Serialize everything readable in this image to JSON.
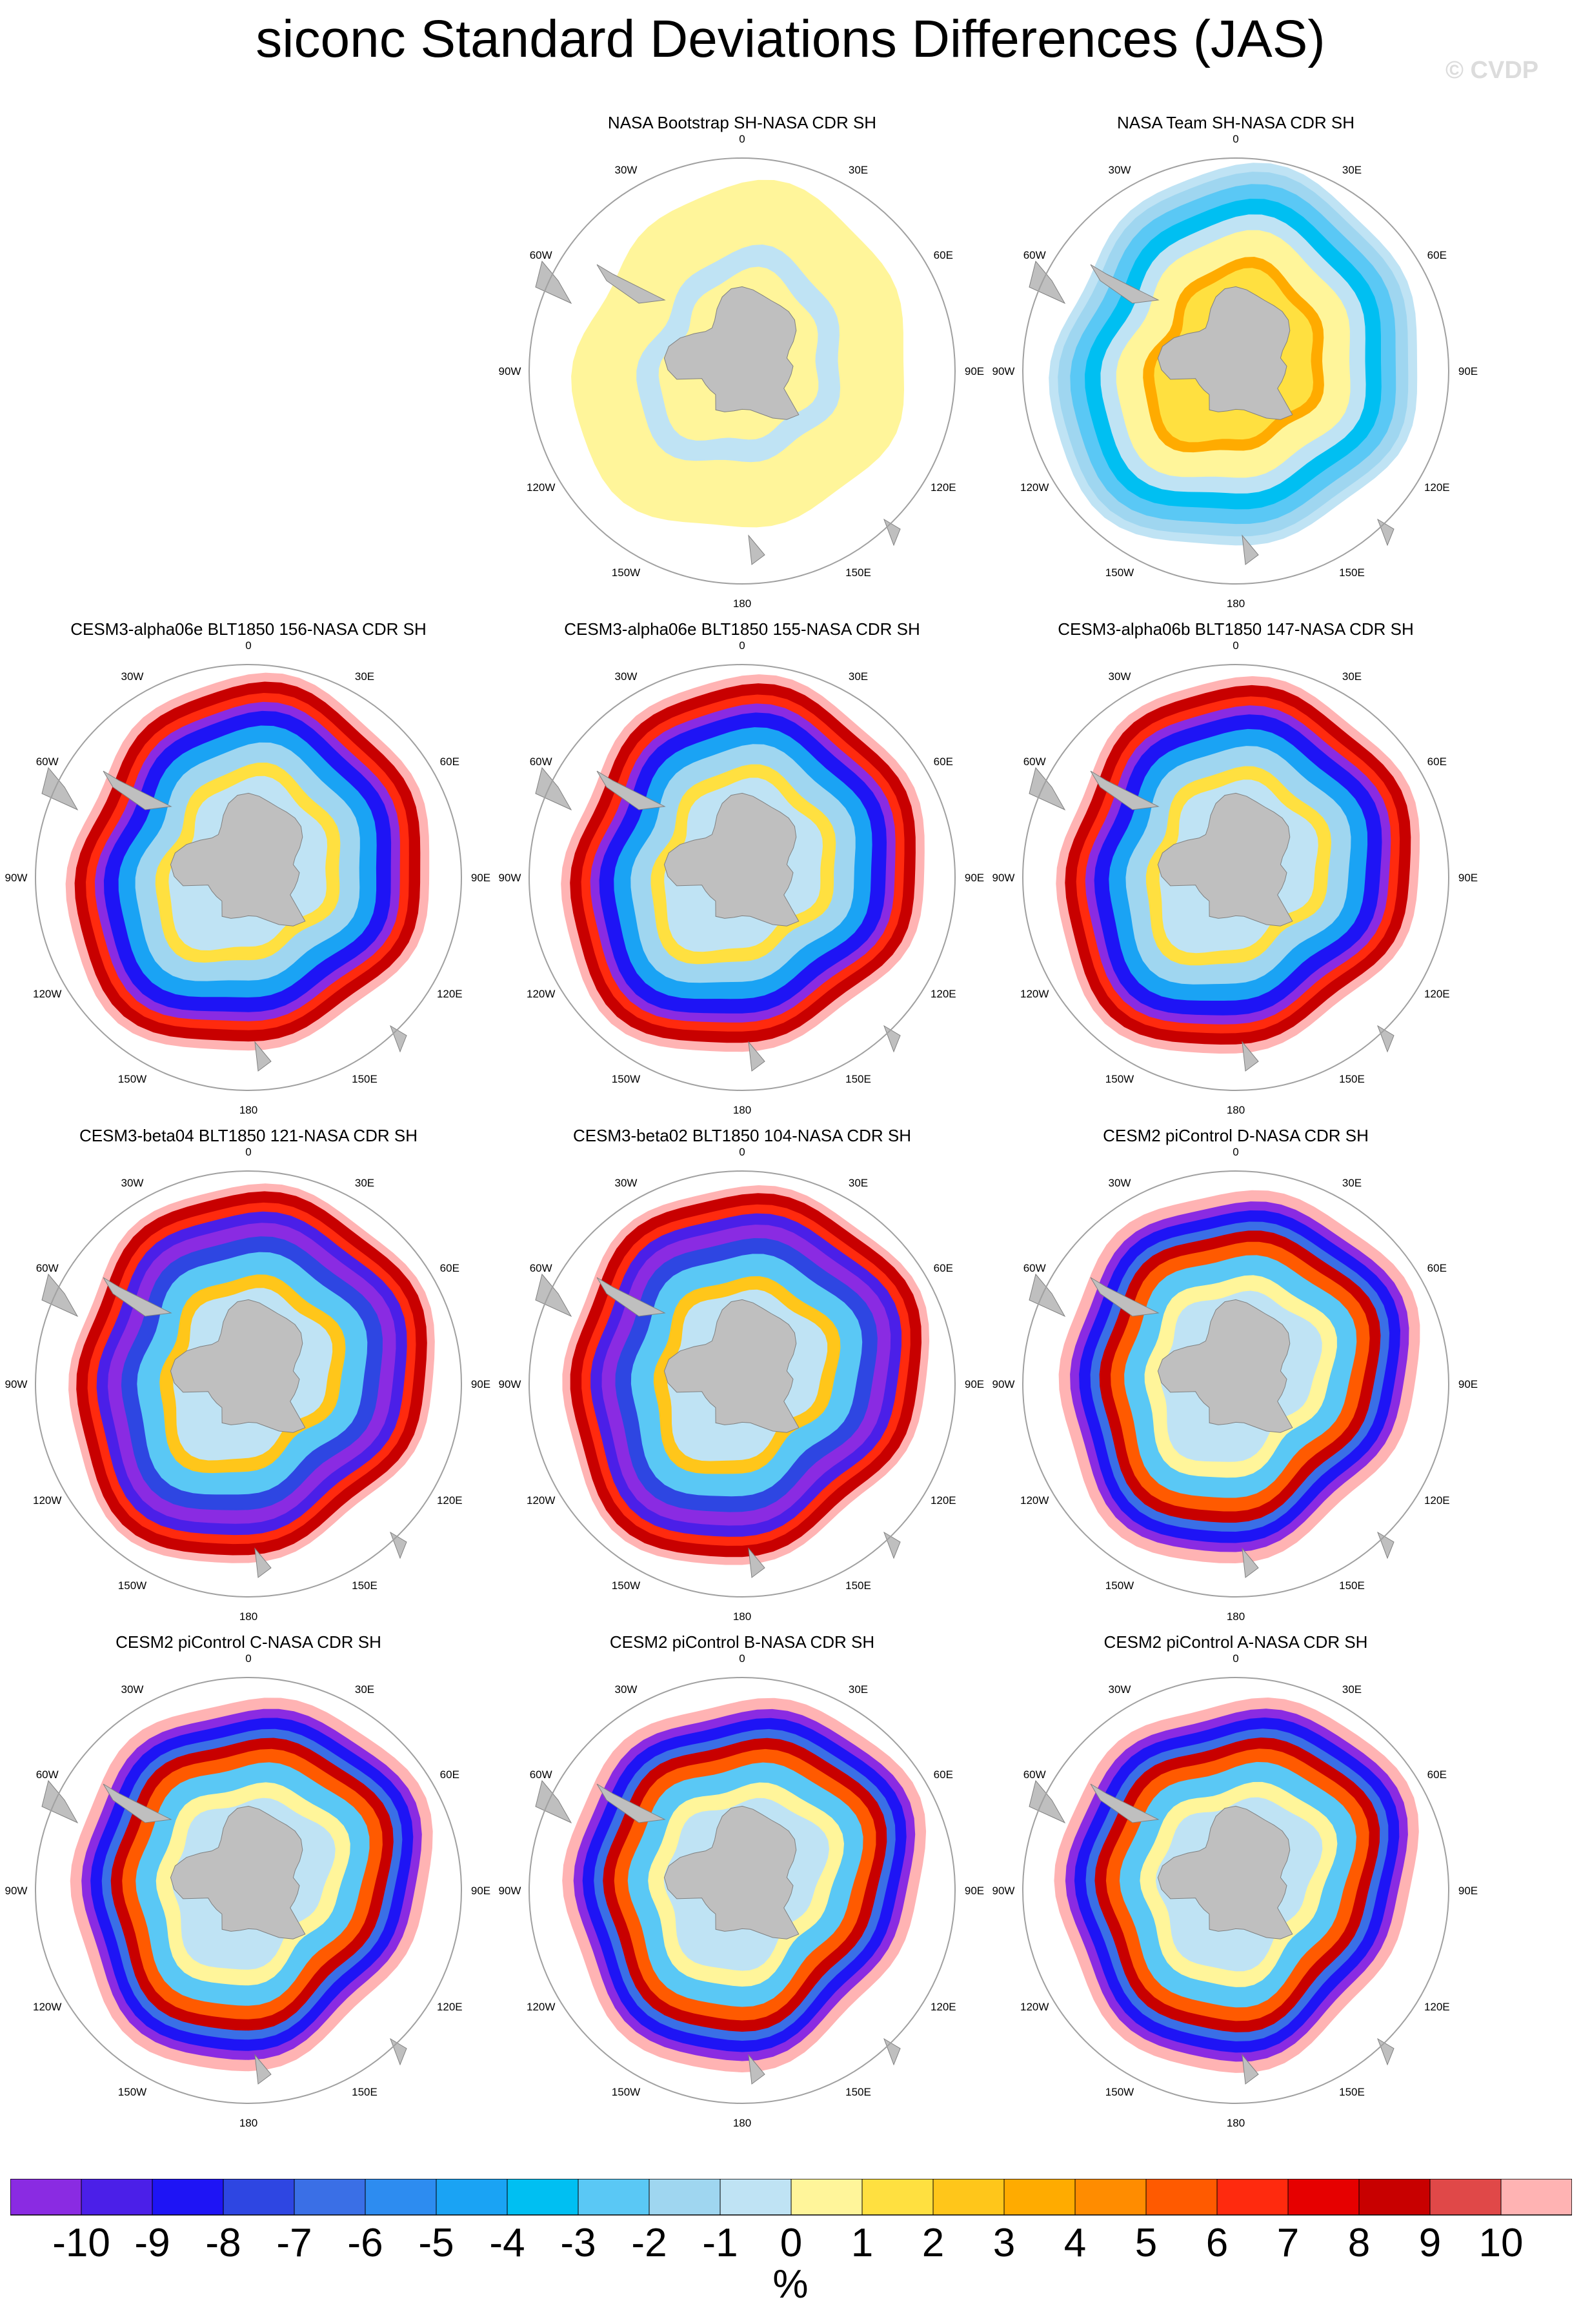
{
  "title": "siconc Standard Deviations Differences (JAS)",
  "watermark": "© CVDP",
  "lon_labels": [
    "0",
    "30E",
    "60E",
    "90E",
    "120E",
    "150E",
    "180",
    "150W",
    "120W",
    "90W",
    "60W",
    "30W"
  ],
  "colors": {
    "land": "#bfbfbf",
    "circle": "#a0a0a0",
    "palette": [
      "#8a2be2",
      "#4b1fe8",
      "#1e14f5",
      "#2e46e2",
      "#3a6fe6",
      "#2d8cf0",
      "#1aa3f4",
      "#00bff2",
      "#5ac8f5",
      "#9fd6f0",
      "#bfe3f4",
      "#fff59a",
      "#ffe040",
      "#ffc61a",
      "#ffab00",
      "#ff8c00",
      "#ff5a00",
      "#ff2a0e",
      "#e60000",
      "#c80000",
      "#e04848",
      "#ffb3b3"
    ]
  },
  "colorbar": {
    "tick_labels": [
      "-10",
      "-9",
      "-8",
      "-7",
      "-6",
      "-5",
      "-4",
      "-3",
      "-2",
      "-1",
      "0",
      "1",
      "2",
      "3",
      "4",
      "5",
      "6",
      "7",
      "8",
      "9",
      "10"
    ],
    "units": "%"
  },
  "chart_data": [
    {
      "type": "heatmap",
      "title": "NASA Bootstrap SH-NASA CDR SH",
      "pattern": "bootstrap"
    },
    {
      "type": "heatmap",
      "title": "NASA Team SH-NASA CDR SH",
      "pattern": "team"
    },
    {
      "type": "heatmap",
      "title": "CESM3-alpha06e BLT1850 156-NASA CDR SH",
      "pattern": "cesm3"
    },
    {
      "type": "heatmap",
      "title": "CESM3-alpha06e BLT1850 155-NASA CDR SH",
      "pattern": "cesm3"
    },
    {
      "type": "heatmap",
      "title": "CESM3-alpha06b BLT1850 147-NASA CDR SH",
      "pattern": "cesm3"
    },
    {
      "type": "heatmap",
      "title": "CESM3-beta04 BLT1850 121-NASA CDR SH",
      "pattern": "cesm3b"
    },
    {
      "type": "heatmap",
      "title": "CESM3-beta02 BLT1850 104-NASA CDR SH",
      "pattern": "cesm3b"
    },
    {
      "type": "heatmap",
      "title": "CESM2 piControl D-NASA CDR SH",
      "pattern": "cesm2"
    },
    {
      "type": "heatmap",
      "title": "CESM2 piControl C-NASA CDR SH",
      "pattern": "cesm2"
    },
    {
      "type": "heatmap",
      "title": "CESM2 piControl B-NASA CDR SH",
      "pattern": "cesm2"
    },
    {
      "type": "heatmap",
      "title": "CESM2 piControl A-NASA CDR SH",
      "pattern": "cesm2"
    }
  ]
}
